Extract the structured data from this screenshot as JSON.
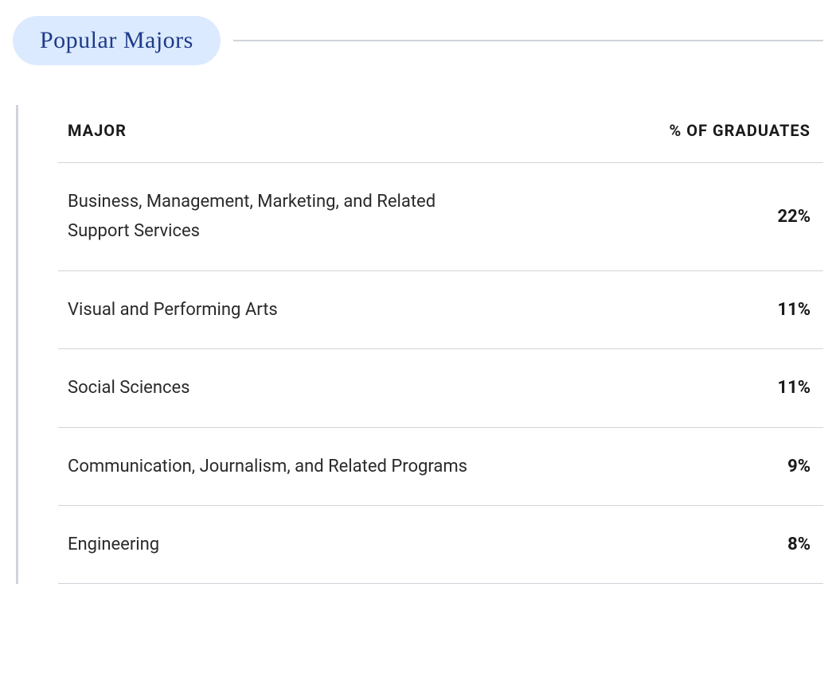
{
  "section": {
    "title": "Popular Majors",
    "title_bg": "#dbeafe",
    "title_color": "#1e3a8a",
    "divider_color": "#d0d4da"
  },
  "table": {
    "columns": {
      "major": "MAJOR",
      "percent": "% OF GRADUATES"
    },
    "border_color": "#d0d4da",
    "rows": [
      {
        "major": "Business, Management, Marketing, and Related Support Services",
        "percent": "22%"
      },
      {
        "major": "Visual and Performing Arts",
        "percent": "11%"
      },
      {
        "major": "Social Sciences",
        "percent": "11%"
      },
      {
        "major": "Communication, Journalism, and Related Programs",
        "percent": "9%"
      },
      {
        "major": "Engineering",
        "percent": "8%"
      }
    ]
  }
}
